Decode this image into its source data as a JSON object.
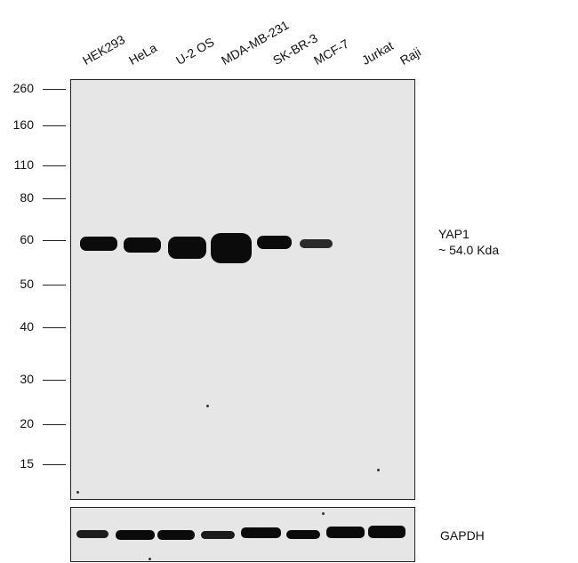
{
  "lanes": [
    "HEK293",
    "HeLa",
    "U-2 OS",
    "MDA-MB-231",
    "SK-BR-3",
    "MCF-7",
    "Jurkat",
    "Raji"
  ],
  "markers": [
    "260",
    "160",
    "110",
    "80",
    "60",
    "50",
    "40",
    "30",
    "20",
    "15"
  ],
  "target": {
    "name": "YAP1",
    "size": "~ 54.0 Kda"
  },
  "loading_control": {
    "name": "GAPDH"
  },
  "colors": {
    "membrane": "#e6e6e6",
    "band": "#0b0b0b",
    "border": "#222222"
  }
}
